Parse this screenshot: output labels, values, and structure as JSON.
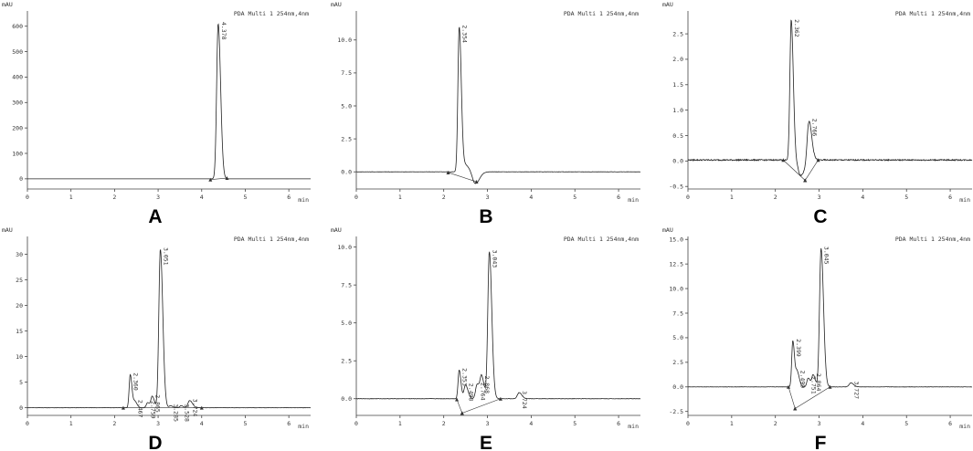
{
  "chart_data": [
    {
      "id": "A",
      "type": "line",
      "panel_label": "A",
      "header": "PDA Multi 1 254nm,4nm",
      "ylabel": "mAU",
      "xlabel": "min",
      "xlim": [
        0,
        6.5
      ],
      "ylim": [
        -40,
        660
      ],
      "xticks": [
        0,
        1,
        2,
        3,
        4,
        5,
        6
      ],
      "yticks": [
        0,
        100,
        200,
        300,
        400,
        500,
        600
      ],
      "ytick_labels": [
        "0",
        "100",
        "200",
        "300",
        "400",
        "500",
        "600"
      ],
      "baseline": 0,
      "noise": 0,
      "peaks": [
        {
          "label": "4.378",
          "rt": 4.378,
          "height": 610,
          "width": 0.035
        }
      ],
      "integration_lines": [
        [
          [
            4.2,
            -3
          ],
          [
            4.58,
            3
          ]
        ]
      ]
    },
    {
      "id": "B",
      "type": "line",
      "panel_label": "B",
      "header": "PDA Multi 1 254nm,4nm",
      "ylabel": "mAU",
      "xlabel": "min",
      "xlim": [
        0,
        6.5
      ],
      "ylim": [
        -1.3,
        12.2
      ],
      "xticks": [
        0,
        1,
        2,
        3,
        4,
        5,
        6
      ],
      "yticks": [
        0,
        2.5,
        5,
        7.5,
        10
      ],
      "ytick_labels": [
        "0.0",
        "2.5",
        "5.0",
        "7.5",
        "10.0"
      ],
      "baseline": 0,
      "noise": 0.01,
      "peaks": [
        {
          "label": "2.354",
          "rt": 2.354,
          "height": 11.0,
          "width": 0.03
        },
        {
          "label": "",
          "rt": 2.5,
          "height": 0.5,
          "width": 0.05
        },
        {
          "label": "",
          "rt": 2.72,
          "height": -0.9,
          "width": 0.06
        }
      ],
      "integration_lines": [
        [
          [
            2.1,
            -0.05
          ],
          [
            2.75,
            -0.75
          ]
        ]
      ]
    },
    {
      "id": "C",
      "type": "line",
      "panel_label": "C",
      "header": "PDA Multi 1 254nm,4nm",
      "ylabel": "mAU",
      "xlabel": "min",
      "xlim": [
        0,
        6.5
      ],
      "ylim": [
        -0.55,
        2.95
      ],
      "xticks": [
        0,
        1,
        2,
        3,
        4,
        5,
        6
      ],
      "yticks": [
        -0.5,
        0,
        0.5,
        1,
        1.5,
        2,
        2.5
      ],
      "ytick_labels": [
        "-0.5",
        "0.0",
        "0.5",
        "1.0",
        "1.5",
        "2.0",
        "2.5"
      ],
      "baseline": 0.02,
      "noise": 0.012,
      "peaks": [
        {
          "label": "2.362",
          "rt": 2.362,
          "height": 2.75,
          "width": 0.03
        },
        {
          "label": "2.766",
          "rt": 2.766,
          "height": 0.8,
          "width": 0.04
        },
        {
          "label": "",
          "rt": 2.58,
          "height": -0.3,
          "width": 0.06
        }
      ],
      "integration_lines": [
        [
          [
            2.18,
            0.02
          ],
          [
            2.68,
            -0.38
          ]
        ],
        [
          [
            2.68,
            -0.38
          ],
          [
            2.98,
            0.02
          ]
        ]
      ]
    },
    {
      "id": "D",
      "type": "line",
      "panel_label": "D",
      "header": "PDA Multi 1 254nm,4nm",
      "ylabel": "mAU",
      "xlabel": "min",
      "xlim": [
        0,
        6.5
      ],
      "ylim": [
        -1.5,
        33.5
      ],
      "xticks": [
        0,
        1,
        2,
        3,
        4,
        5,
        6
      ],
      "yticks": [
        0,
        5,
        10,
        15,
        20,
        25,
        30
      ],
      "ytick_labels": [
        "0",
        "5",
        "10",
        "15",
        "20",
        "25",
        "30"
      ],
      "baseline": 0,
      "noise": 0.02,
      "peaks": [
        {
          "label": "2.360",
          "rt": 2.36,
          "height": 6.5,
          "width": 0.025
        },
        {
          "label": "2.467",
          "rt": 2.467,
          "height": 1.2,
          "width": 0.03
        },
        {
          "label": "2.759",
          "rt": 2.759,
          "height": 1.0,
          "width": 0.03
        },
        {
          "label": "2.865",
          "rt": 2.865,
          "height": 2.2,
          "width": 0.03
        },
        {
          "label": "3.051",
          "rt": 3.051,
          "height": 31.0,
          "width": 0.035
        },
        {
          "label": "3.285",
          "rt": 3.285,
          "height": 0.4,
          "width": 0.03
        },
        {
          "label": "3.528",
          "rt": 3.528,
          "height": 0.4,
          "width": 0.03
        },
        {
          "label": "3.724",
          "rt": 3.724,
          "height": 1.4,
          "width": 0.04
        }
      ],
      "integration_lines": [
        [
          [
            2.2,
            0
          ],
          [
            4.0,
            0
          ]
        ]
      ]
    },
    {
      "id": "E",
      "type": "line",
      "panel_label": "E",
      "header": "PDA Multi 1 254nm,4nm",
      "ylabel": "mAU",
      "xlabel": "min",
      "xlim": [
        0,
        6.5
      ],
      "ylim": [
        -1.1,
        10.7
      ],
      "xticks": [
        0,
        1,
        2,
        3,
        4,
        5,
        6
      ],
      "yticks": [
        0,
        2.5,
        5,
        7.5,
        10
      ],
      "ytick_labels": [
        "0.0",
        "2.5",
        "5.0",
        "7.5",
        "10.0"
      ],
      "baseline": 0,
      "noise": 0.012,
      "peaks": [
        {
          "label": "2.353",
          "rt": 2.353,
          "height": 1.9,
          "width": 0.025
        },
        {
          "label": "2.498",
          "rt": 2.498,
          "height": 0.9,
          "width": 0.035
        },
        {
          "label": "2.764",
          "rt": 2.764,
          "height": 0.95,
          "width": 0.035
        },
        {
          "label": "2.868",
          "rt": 2.868,
          "height": 1.4,
          "width": 0.035
        },
        {
          "label": "3.043",
          "rt": 3.043,
          "height": 9.7,
          "width": 0.035
        },
        {
          "label": "3.724",
          "rt": 3.724,
          "height": 0.4,
          "width": 0.04
        }
      ],
      "integration_lines": [
        [
          [
            2.3,
            -0.05
          ],
          [
            2.42,
            -0.95
          ]
        ],
        [
          [
            2.42,
            -0.95
          ],
          [
            3.3,
            0.0
          ]
        ]
      ]
    },
    {
      "id": "F",
      "type": "line",
      "panel_label": "F",
      "header": "PDA Multi 1 254nm,4nm",
      "ylabel": "mAU",
      "xlabel": "min",
      "xlim": [
        0,
        6.5
      ],
      "ylim": [
        -2.9,
        15.3
      ],
      "xticks": [
        0,
        1,
        2,
        3,
        4,
        5,
        6
      ],
      "yticks": [
        -2.5,
        0,
        2.5,
        5,
        7.5,
        10,
        12.5,
        15
      ],
      "ytick_labels": [
        "-2.5",
        "0.0",
        "2.5",
        "5.0",
        "7.5",
        "10.0",
        "12.5",
        "15.0"
      ],
      "baseline": 0,
      "noise": 0.015,
      "peaks": [
        {
          "label": "2.399",
          "rt": 2.399,
          "height": 4.7,
          "width": 0.025
        },
        {
          "label": "2.499",
          "rt": 2.499,
          "height": 1.5,
          "width": 0.03
        },
        {
          "label": "2.751",
          "rt": 2.751,
          "height": 0.9,
          "width": 0.03
        },
        {
          "label": "2.864",
          "rt": 2.864,
          "height": 1.2,
          "width": 0.03
        },
        {
          "label": "3.045",
          "rt": 3.045,
          "height": 14.1,
          "width": 0.035
        },
        {
          "label": "3.727",
          "rt": 3.727,
          "height": 0.4,
          "width": 0.04
        }
      ],
      "integration_lines": [
        [
          [
            2.3,
            0.0
          ],
          [
            2.45,
            -2.2
          ]
        ],
        [
          [
            2.45,
            -2.2
          ],
          [
            3.25,
            0.0
          ]
        ]
      ]
    }
  ]
}
